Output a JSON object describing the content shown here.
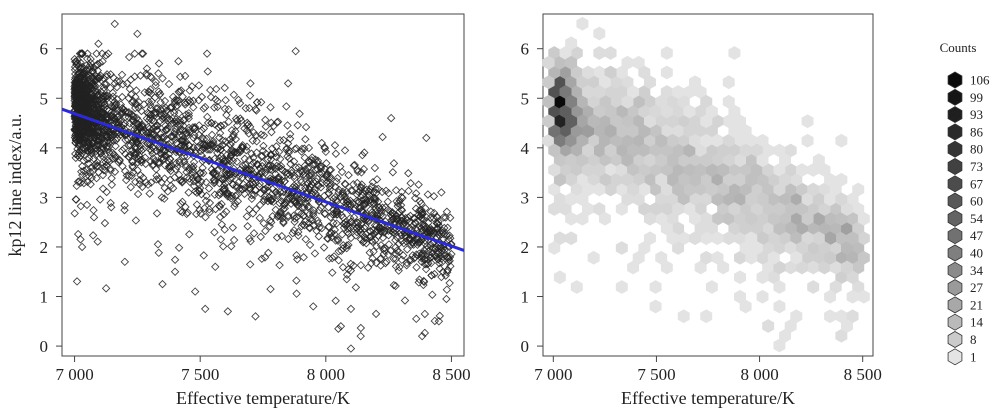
{
  "chart_data": [
    {
      "type": "scatter",
      "title": "",
      "xlabel": "Effective temperature/K",
      "ylabel": "kp12 line index/a.u.",
      "xlim": [
        6950,
        8550
      ],
      "ylim": [
        -0.2,
        6.7
      ],
      "x_ticks": [
        7000,
        7500,
        8000,
        8500
      ],
      "x_tick_labels": [
        "7 000",
        "7 500",
        "8 000",
        "8 500"
      ],
      "y_ticks": [
        0,
        1,
        2,
        3,
        4,
        5,
        6
      ],
      "y_tick_labels": [
        "0",
        "1",
        "2",
        "3",
        "4",
        "5",
        "6"
      ],
      "trend": {
        "x": [
          6950,
          8550
        ],
        "y": [
          4.78,
          1.93
        ],
        "color": "#2b2bd6"
      },
      "density_profile": {
        "x": [
          7000,
          7100,
          7200,
          7300,
          7400,
          7500,
          7600,
          7700,
          7800,
          7900,
          8000,
          8100,
          8200,
          8300,
          8400,
          8500
        ],
        "y_center": [
          4.85,
          4.6,
          4.4,
          4.2,
          4.05,
          3.9,
          3.7,
          3.55,
          3.35,
          3.15,
          2.95,
          2.75,
          2.55,
          2.35,
          2.15,
          2.0
        ],
        "y_spread": [
          0.45,
          0.55,
          0.6,
          0.65,
          0.65,
          0.65,
          0.65,
          0.6,
          0.6,
          0.55,
          0.55,
          0.5,
          0.45,
          0.45,
          0.4,
          0.35
        ]
      },
      "outliers": [
        [
          7160,
          6.5
        ],
        [
          7250,
          6.3
        ],
        [
          7095,
          6.1
        ],
        [
          7350,
          5.4
        ],
        [
          7880,
          5.95
        ],
        [
          7440,
          5.45
        ],
        [
          7700,
          5.3
        ],
        [
          7850,
          5.3
        ],
        [
          8260,
          4.6
        ],
        [
          8400,
          4.2
        ],
        [
          8460,
          3.1
        ],
        [
          7030,
          2.0
        ],
        [
          7200,
          1.7
        ],
        [
          7350,
          1.25
        ],
        [
          7480,
          1.1
        ],
        [
          7520,
          0.75
        ],
        [
          7610,
          0.7
        ],
        [
          7780,
          1.15
        ],
        [
          7720,
          0.6
        ],
        [
          7950,
          0.8
        ],
        [
          8100,
          0.75
        ],
        [
          8200,
          0.65
        ],
        [
          8360,
          0.55
        ],
        [
          8450,
          0.5
        ],
        [
          8480,
          0.95
        ],
        [
          8100,
          -0.05
        ],
        [
          8060,
          0.4
        ],
        [
          7400,
          1.5
        ],
        [
          7560,
          1.6
        ],
        [
          8050,
          0.35
        ]
      ],
      "marker": "open-diamond",
      "marker_color": "#222222"
    },
    {
      "type": "heatmap",
      "subtype": "hexbin",
      "title": "",
      "xlabel": "Effective temperature/K",
      "ylabel": "",
      "xlim": [
        6950,
        8550
      ],
      "ylim": [
        -0.2,
        6.7
      ],
      "x_ticks": [
        7000,
        7500,
        8000,
        8500
      ],
      "x_tick_labels": [
        "7 000",
        "7 500",
        "8 000",
        "8 500"
      ],
      "y_ticks": [
        0,
        1,
        2,
        3,
        4,
        5,
        6
      ],
      "y_tick_labels": [
        "0",
        "1",
        "2",
        "3",
        "4",
        "5",
        "6"
      ],
      "legend": {
        "title": "Counts",
        "levels": [
          "106",
          "99",
          "93",
          "86",
          "80",
          "73",
          "67",
          "60",
          "54",
          "47",
          "40",
          "34",
          "27",
          "21",
          "14",
          "8",
          "1"
        ],
        "level_values": [
          106,
          99,
          93,
          86,
          80,
          73,
          67,
          60,
          54,
          47,
          40,
          34,
          27,
          21,
          14,
          8,
          1
        ]
      }
    }
  ]
}
